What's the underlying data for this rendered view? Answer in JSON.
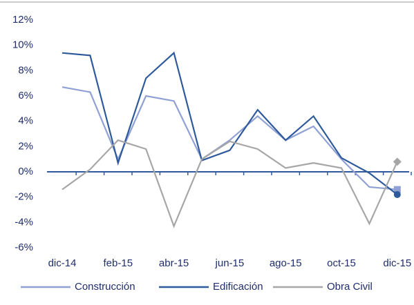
{
  "chart_data": {
    "type": "line",
    "categories": [
      "dic-14",
      null,
      "feb-15",
      null,
      "abr-15",
      null,
      "jun-15",
      null,
      "ago-15",
      null,
      "oct-15",
      null,
      "dic-15"
    ],
    "series": [
      {
        "name": "Construcción",
        "color": "#8fa0d4",
        "marker": "square",
        "values": [
          6.7,
          6.3,
          1.0,
          6.0,
          5.6,
          1.0,
          2.5,
          4.4,
          2.5,
          3.6,
          1.0,
          -1.2,
          -1.4
        ]
      },
      {
        "name": "Edificación",
        "color": "#2e5a9c",
        "marker": "circle",
        "values": [
          9.4,
          9.2,
          0.7,
          7.4,
          9.4,
          0.9,
          1.7,
          4.9,
          2.5,
          4.4,
          1.1,
          -0.1,
          -1.8
        ]
      },
      {
        "name": "Obra Civil",
        "color": "#a6a6a6",
        "marker": "diamond",
        "values": [
          -1.4,
          0.2,
          2.5,
          1.8,
          -4.3,
          1.0,
          2.4,
          1.8,
          0.3,
          0.7,
          0.3,
          -4.1,
          0.8
        ]
      }
    ],
    "ylim": [
      -6,
      12
    ],
    "yticks": [
      {
        "value": -6,
        "label": "-6%"
      },
      {
        "value": -4,
        "label": "-4%"
      },
      {
        "value": -2,
        "label": "-2%"
      },
      {
        "value": 0,
        "label": "0%"
      },
      {
        "value": 2,
        "label": "2%"
      },
      {
        "value": 4,
        "label": "4%"
      },
      {
        "value": 6,
        "label": "6%"
      },
      {
        "value": 8,
        "label": "8%"
      },
      {
        "value": 10,
        "label": "10%"
      },
      {
        "value": 12,
        "label": "12%"
      }
    ],
    "grid": false,
    "legend": "bottom"
  }
}
